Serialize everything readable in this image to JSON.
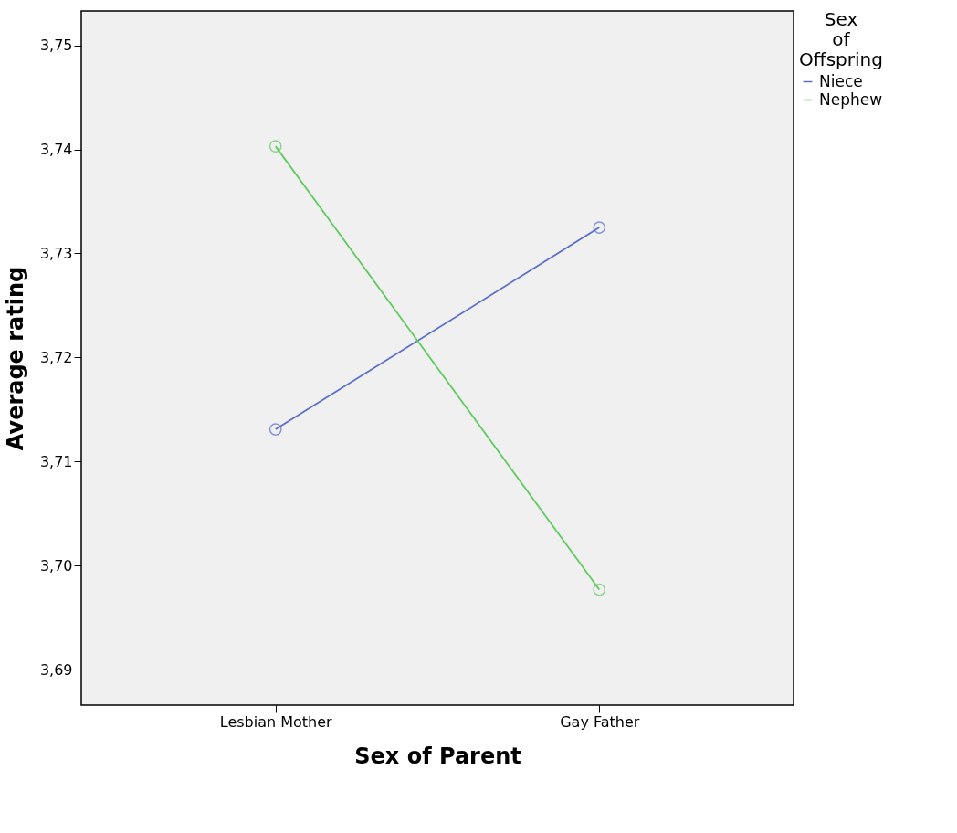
{
  "chart_data": {
    "type": "line",
    "xlabel": "Sex of Parent",
    "ylabel": "Average rating",
    "legend_title": "Sex of Offspring",
    "categories": [
      "Lesbian Mother",
      "Gay Father"
    ],
    "series": [
      {
        "name": "Niece",
        "color": "#5b6fc9",
        "values": [
          3.7131,
          3.7325
        ]
      },
      {
        "name": "Nephew",
        "color": "#5fcb5f",
        "values": [
          3.7403,
          3.6977
        ]
      }
    ],
    "ylim": [
      3.6866,
      3.7533
    ],
    "yticks": [
      {
        "value": 3.69,
        "label": "3,69"
      },
      {
        "value": 3.7,
        "label": "3,70"
      },
      {
        "value": 3.71,
        "label": "3,71"
      },
      {
        "value": 3.72,
        "label": "3,72"
      },
      {
        "value": 3.73,
        "label": "3,73"
      },
      {
        "value": 3.74,
        "label": "3,74"
      },
      {
        "value": 3.75,
        "label": "3,75"
      }
    ],
    "marker": "circle",
    "line_style": "solid",
    "grid": false,
    "legend": "top right"
  }
}
